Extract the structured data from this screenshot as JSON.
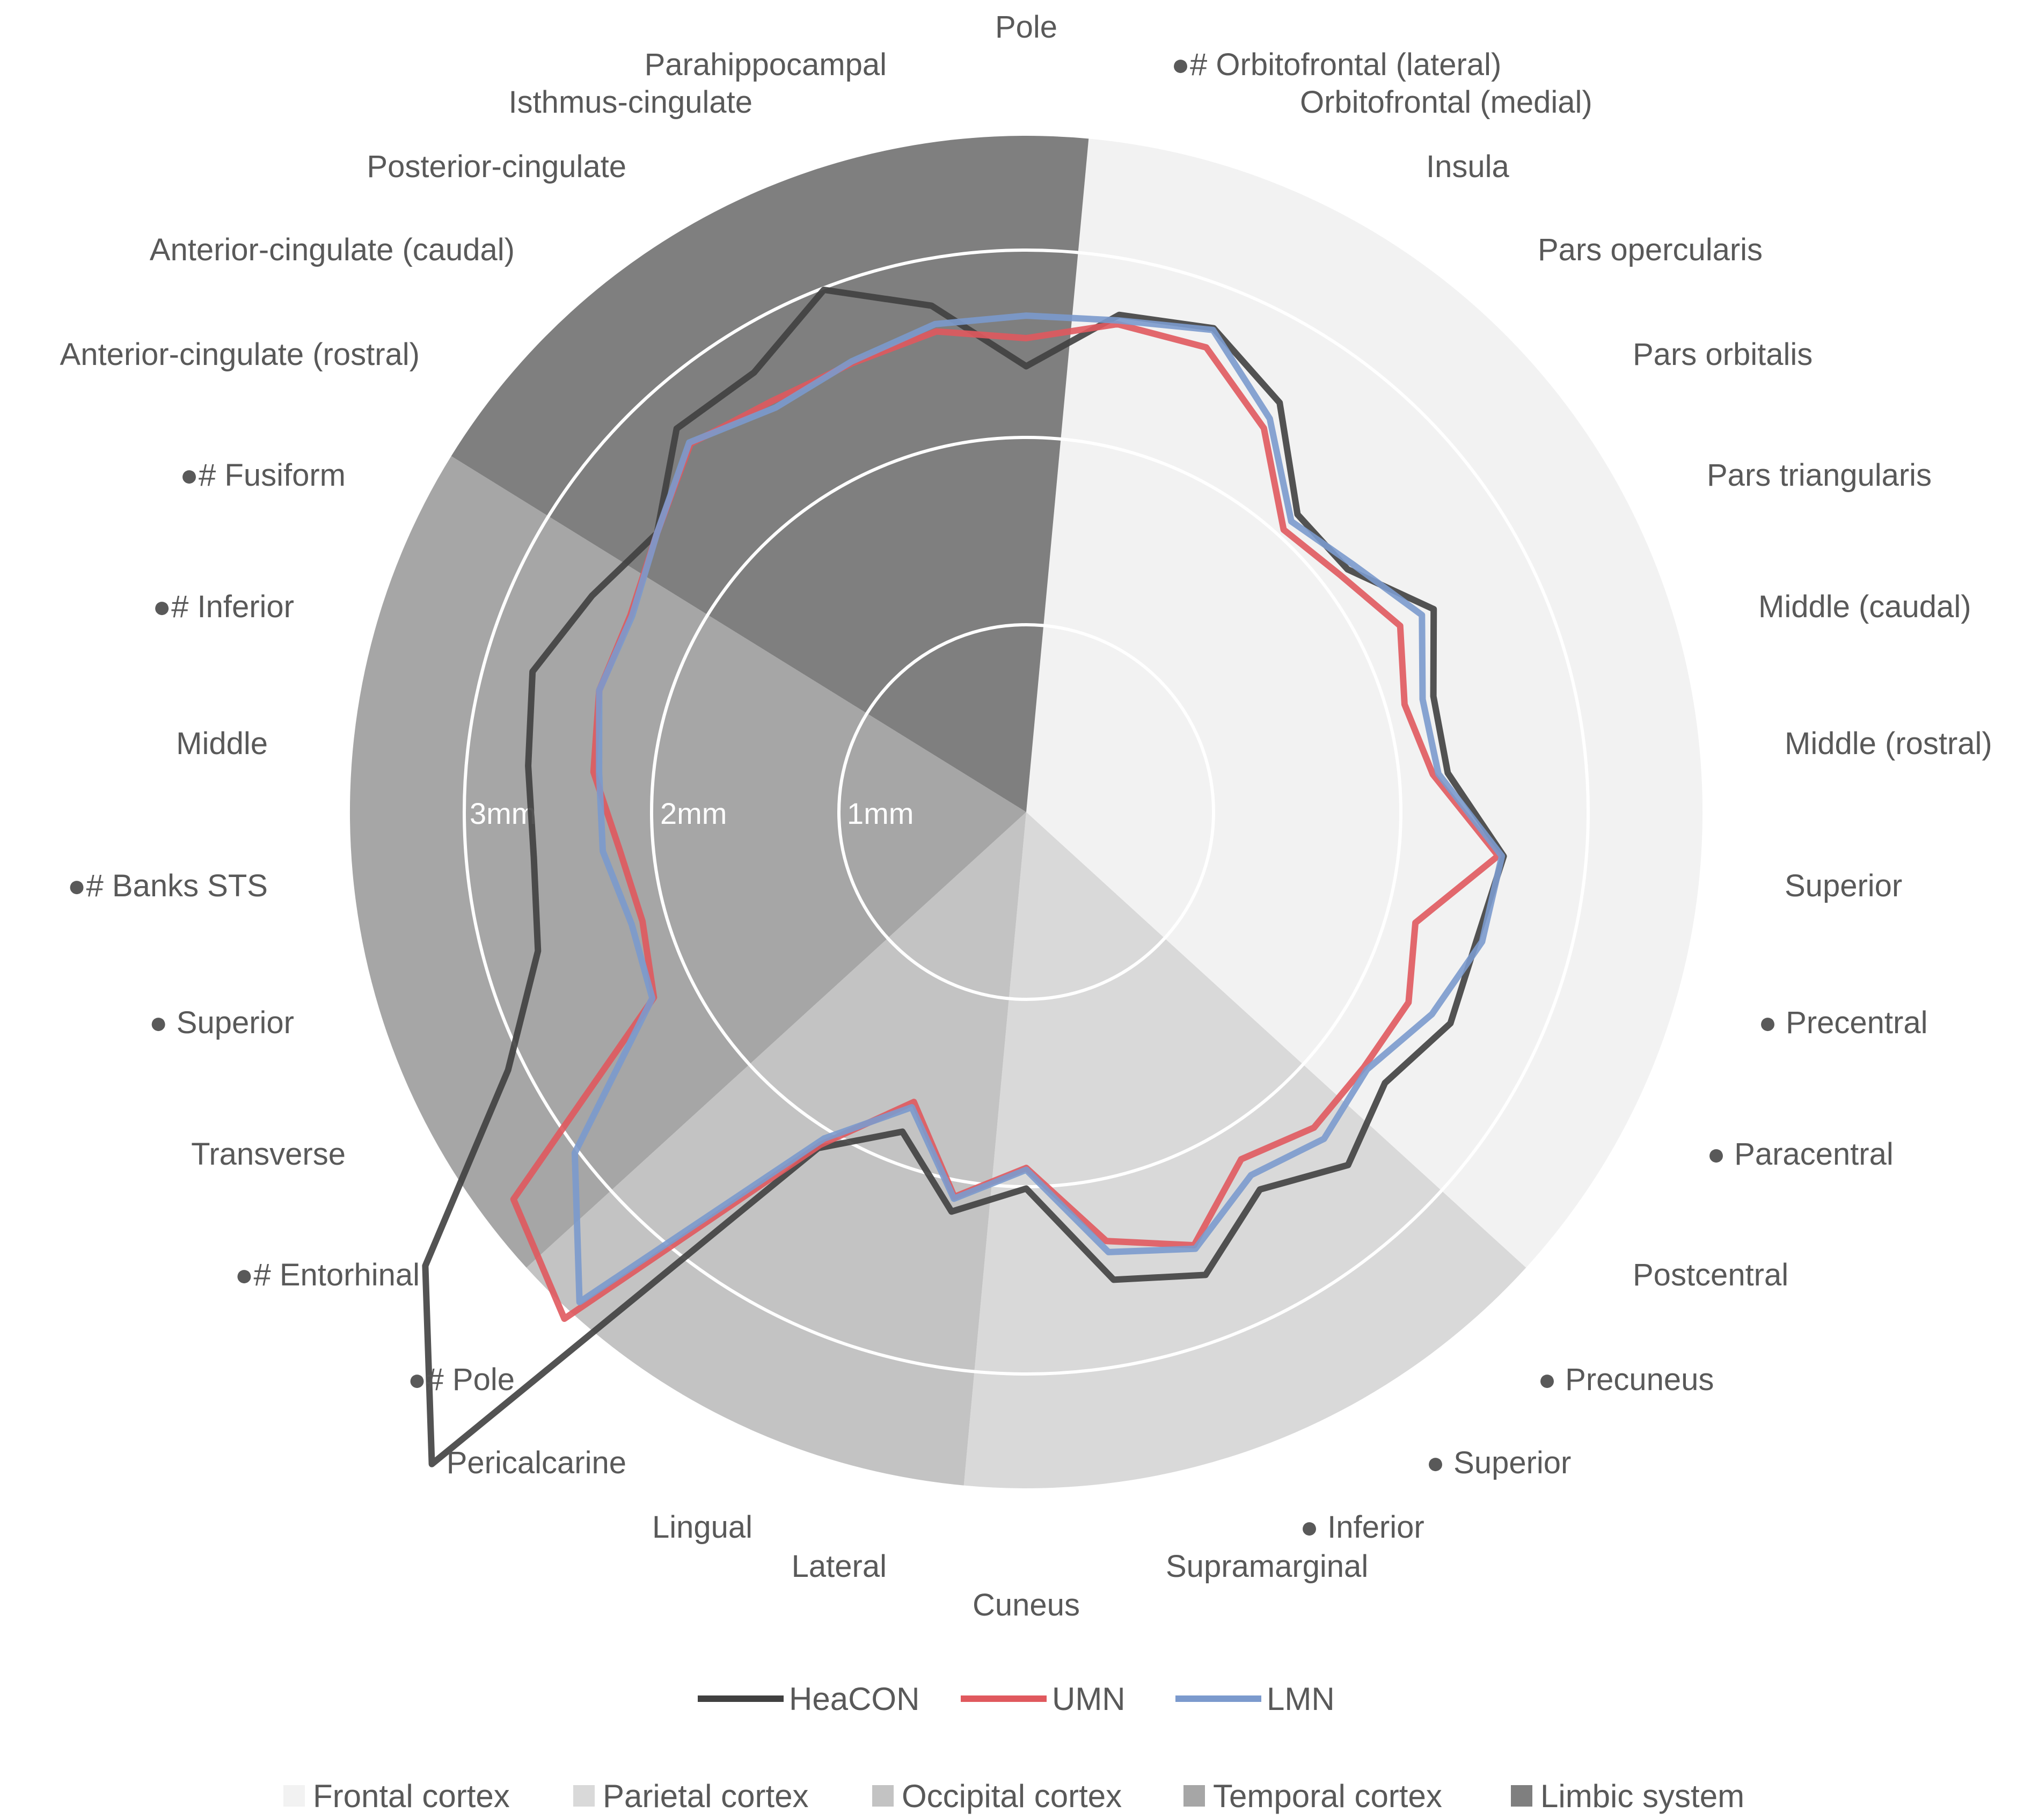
{
  "chart_data": {
    "type": "radar",
    "title": "",
    "radial_axis": {
      "min": 0,
      "max": 4.5,
      "unit": "mm",
      "ring_values": [
        1,
        2,
        3,
        4
      ],
      "ring_labels": [
        "1mm",
        "2mm",
        "3mm"
      ]
    },
    "categories": [
      "Pole",
      "●# Orbitofrontal (lateral)",
      "Orbitofrontal (medial)",
      "Insula",
      "Pars opercularis",
      "Pars orbitalis",
      "Pars triangularis",
      "Middle (caudal)",
      "Middle (rostral)",
      "Superior",
      "● Precentral",
      "● Paracentral",
      "Postcentral",
      "● Precuneus",
      "● Superior",
      "● Inferior",
      "Supramarginal",
      "Cuneus",
      "Lateral",
      "Lingual",
      "Pericalcarine",
      "●# Pole",
      "●# Entorhinal",
      "Transverse",
      "● Superior",
      "●# Banks STS",
      "Middle",
      "●# Inferior",
      "●# Fusiform",
      "Anterior-cingulate (rostral)",
      "Anterior-cingulate (caudal)",
      "Posterior-cingulate",
      "Isthmus-cingulate",
      "Parahippocampal"
    ],
    "series": [
      {
        "name": "HeaCON",
        "color": "#404040",
        "values": [
          2.38,
          2.7,
          2.77,
          2.57,
          2.15,
          2.15,
          2.43,
          2.26,
          2.26,
          2.56,
          2.5,
          2.53,
          2.4,
          2.55,
          2.37,
          2.65,
          2.54,
          2.01,
          2.17,
          1.83,
          2.11,
          4.71,
          4.02,
          3.09,
          2.71,
          2.64,
          2.67,
          2.74,
          2.59,
          2.47,
          2.77,
          2.76,
          2.99,
          2.75
        ]
      },
      {
        "name": "UMN",
        "color": "#e0595e",
        "values": [
          2.53,
          2.65,
          2.66,
          2.41,
          2.04,
          2.1,
          2.23,
          2.1,
          2.18,
          2.53,
          2.16,
          2.28,
          2.26,
          2.28,
          2.18,
          2.48,
          2.33,
          1.9,
          2.09,
          1.66,
          2.09,
          3.66,
          3.43,
          2.22,
          2.13,
          2.18,
          2.32,
          2.37,
          2.36,
          2.47,
          2.66,
          2.58,
          2.57,
          2.61
        ]
      },
      {
        "name": "LMN",
        "color": "#7b9acd",
        "values": [
          2.65,
          2.67,
          2.76,
          2.47,
          2.1,
          2.19,
          2.36,
          2.2,
          2.21,
          2.55,
          2.53,
          2.42,
          2.28,
          2.36,
          2.28,
          2.5,
          2.39,
          1.91,
          2.1,
          1.69,
          2.05,
          3.54,
          3.02,
          2.23,
          2.19,
          2.27,
          2.29,
          2.37,
          2.35,
          2.47,
          2.67,
          2.54,
          2.58,
          2.65
        ]
      }
    ],
    "regions": [
      {
        "name": "Frontal cortex",
        "color": "#f2f2f2"
      },
      {
        "name": "Parietal cortex",
        "color": "#d9d9d9"
      },
      {
        "name": "Occipital cortex",
        "color": "#c3c3c3"
      },
      {
        "name": "Temporal cortex",
        "color": "#a6a6a6"
      },
      {
        "name": "Limbic system",
        "color": "#7f7f7f"
      }
    ],
    "legend_placement": "bottom-center"
  }
}
